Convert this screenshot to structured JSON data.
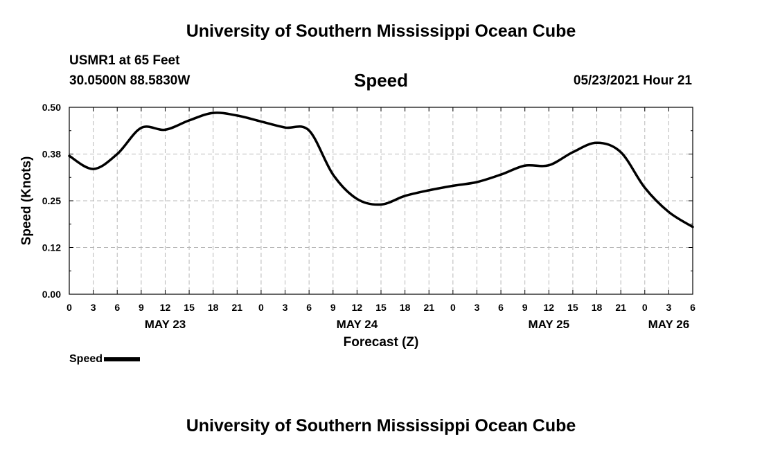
{
  "header": {
    "title": "University of Southern Mississippi Ocean Cube",
    "station": "USMR1 at 65 Feet",
    "coords": "30.0500N  88.5830W",
    "variable": "Speed",
    "datetime": "05/23/2021 Hour 21"
  },
  "footer": {
    "title": "University of Southern Mississippi Ocean Cube"
  },
  "legend": {
    "label": "Speed"
  },
  "chart_data": {
    "type": "line",
    "title": "Speed",
    "xlabel": "Forecast (Z)",
    "ylabel": "Speed (Knots)",
    "ylim": [
      0,
      0.5
    ],
    "xlim": [
      0,
      78
    ],
    "yticks": [
      "0.00",
      "0.12",
      "0.25",
      "0.38",
      "0.50"
    ],
    "ytick_values": [
      0,
      0.125,
      0.25,
      0.375,
      0.5
    ],
    "xtick_labels": [
      "0",
      "3",
      "6",
      "9",
      "12",
      "15",
      "18",
      "21",
      "0",
      "3",
      "6",
      "9",
      "12",
      "15",
      "18",
      "21",
      "0",
      "3",
      "6",
      "9",
      "12",
      "15",
      "18",
      "21",
      "0",
      "3",
      "6"
    ],
    "day_labels": [
      {
        "label": "MAY 23",
        "hour": 12
      },
      {
        "label": "MAY 24",
        "hour": 36
      },
      {
        "label": "MAY 25",
        "hour": 60
      },
      {
        "label": "MAY 26",
        "hour": 75
      }
    ],
    "grid": true,
    "line_color": "#000000",
    "series": [
      {
        "name": "Speed",
        "x": [
          0,
          3,
          6,
          9,
          12,
          15,
          18,
          21,
          24,
          27,
          30,
          33,
          36,
          39,
          42,
          45,
          48,
          51,
          54,
          57,
          60,
          63,
          66,
          69,
          72,
          75,
          78
        ],
        "values": [
          0.37,
          0.335,
          0.375,
          0.445,
          0.44,
          0.465,
          0.485,
          0.478,
          0.462,
          0.446,
          0.438,
          0.32,
          0.255,
          0.24,
          0.263,
          0.278,
          0.29,
          0.3,
          0.32,
          0.344,
          0.345,
          0.38,
          0.405,
          0.38,
          0.285,
          0.22,
          0.18
        ]
      }
    ]
  }
}
